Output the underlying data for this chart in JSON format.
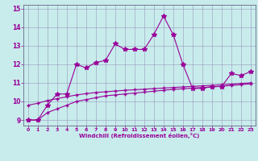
{
  "xlabel": "Windchill (Refroidissement éolien,°C)",
  "bg_color": "#c8ecec",
  "grid_color": "#9999bb",
  "line_color": "#990099",
  "spine_color": "#666688",
  "xlim": [
    -0.5,
    23.5
  ],
  "ylim": [
    8.7,
    15.2
  ],
  "xticks": [
    0,
    1,
    2,
    3,
    4,
    5,
    6,
    7,
    8,
    9,
    10,
    11,
    12,
    13,
    14,
    15,
    16,
    17,
    18,
    19,
    20,
    21,
    22,
    23
  ],
  "yticks": [
    9,
    10,
    11,
    12,
    13,
    14,
    15
  ],
  "series1_x": [
    0,
    1,
    2,
    3,
    4,
    5,
    6,
    7,
    8,
    9,
    10,
    11,
    12,
    13,
    14,
    15,
    16,
    17,
    18,
    19,
    20,
    21,
    22,
    23
  ],
  "series1_y": [
    9.0,
    9.0,
    9.8,
    10.4,
    10.4,
    12.0,
    11.8,
    12.1,
    12.2,
    13.1,
    12.8,
    12.8,
    12.8,
    13.6,
    14.6,
    13.6,
    12.0,
    10.7,
    10.7,
    10.8,
    10.8,
    11.5,
    11.4,
    11.6
  ],
  "series2_x": [
    0,
    1,
    2,
    3,
    4,
    5,
    6,
    7,
    8,
    9,
    10,
    11,
    12,
    13,
    14,
    15,
    16,
    17,
    18,
    19,
    20,
    21,
    22,
    23
  ],
  "series2_y": [
    9.0,
    9.0,
    9.4,
    9.6,
    9.8,
    10.0,
    10.1,
    10.2,
    10.3,
    10.35,
    10.4,
    10.45,
    10.5,
    10.55,
    10.6,
    10.65,
    10.68,
    10.72,
    10.75,
    10.78,
    10.82,
    10.86,
    10.9,
    10.95
  ],
  "series3_x": [
    0,
    1,
    2,
    3,
    4,
    5,
    6,
    7,
    8,
    9,
    10,
    11,
    12,
    13,
    14,
    15,
    16,
    17,
    18,
    19,
    20,
    21,
    22,
    23
  ],
  "series3_y": [
    9.8,
    9.9,
    10.05,
    10.15,
    10.25,
    10.35,
    10.42,
    10.48,
    10.52,
    10.56,
    10.6,
    10.63,
    10.66,
    10.69,
    10.72,
    10.75,
    10.78,
    10.81,
    10.84,
    10.87,
    10.9,
    10.93,
    10.97,
    11.0
  ]
}
